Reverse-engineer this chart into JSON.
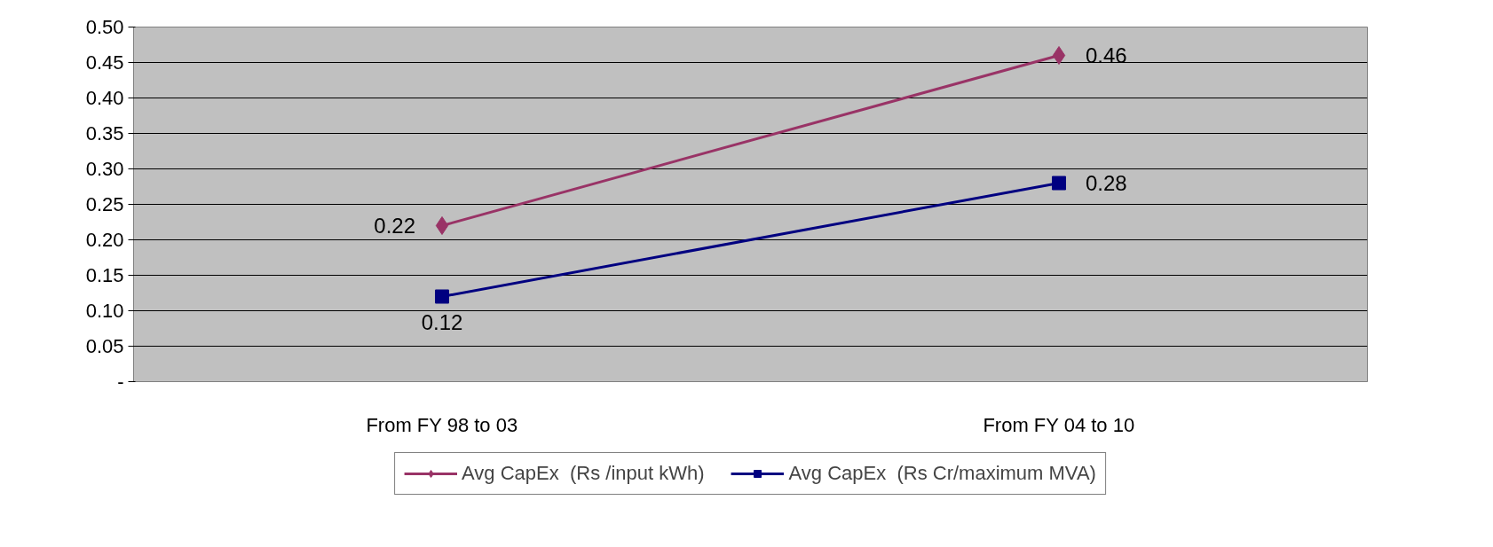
{
  "chart_data": {
    "type": "line",
    "categories": [
      "From FY 98 to 03",
      "From FY 04 to 10"
    ],
    "series": [
      {
        "name": "Avg CapEx  (Rs /input kWh)",
        "color": "#993366",
        "values": [
          0.22,
          0.46
        ],
        "marker": "diamond"
      },
      {
        "name": "Avg CapEx  (Rs Cr/maximum MVA)",
        "color": "#000080",
        "values": [
          0.12,
          0.28
        ],
        "marker": "square"
      }
    ],
    "ylim": [
      0,
      0.5
    ],
    "yticks": [
      {
        "value": 0,
        "label": "-"
      },
      0.05,
      {
        "value": 0.1,
        "label": "0.10"
      },
      0.15,
      {
        "value": 0.2,
        "label": "0.20"
      },
      0.25,
      {
        "value": 0.3,
        "label": "0.30"
      },
      0.35,
      {
        "value": 0.4,
        "label": "0.40"
      },
      0.45,
      {
        "value": 0.5,
        "label": "0.50"
      }
    ],
    "grid": "y",
    "legend": "bottom",
    "data_labels": true,
    "line_style": "solid"
  }
}
